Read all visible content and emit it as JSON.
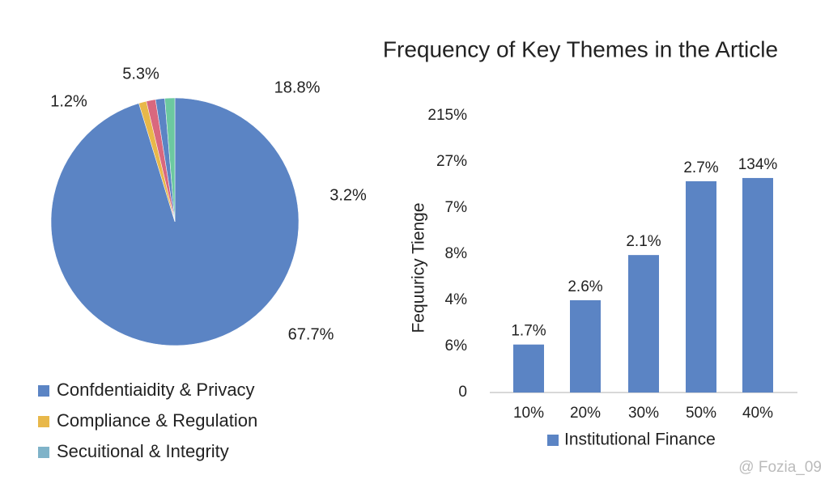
{
  "chart_data": [
    {
      "type": "pie",
      "values": [
        95.3,
        1,
        1.2,
        1.2,
        1.3
      ],
      "colors": [
        "#5b84c4",
        "#e8b84a",
        "#d9687e",
        "#5b84c4",
        "#6cc9a0"
      ],
      "annotations": [
        "5.3%",
        "1.2%",
        "18.8%",
        "3.2%",
        "67.7%"
      ],
      "legend": [
        {
          "name": "Confdentiaidity & Privacy",
          "color": "#5b84c4"
        },
        {
          "name": "Compliance & Regulation",
          "color": "#e8b84a"
        },
        {
          "name": "Secuitional & Integrity",
          "color": "#7fb3c9"
        }
      ]
    },
    {
      "type": "bar",
      "title": "Frequency of Key Themes in the Article",
      "y_label": "Fequuricy Tienge",
      "categories": [
        "10%",
        "20%",
        "30%",
        "50%",
        "40%"
      ],
      "series": [
        {
          "name": "Institutional Finance",
          "color": "#5b84c4",
          "values": [
            1.04,
            2.0,
            2.98,
            4.58,
            4.65
          ]
        }
      ],
      "annotations": [
        "1.7%",
        "2.6%",
        "2.1%",
        "2.7%",
        "134%"
      ],
      "ylim": [
        0,
        6
      ],
      "yticks": [
        0,
        {
          "value": 1,
          "label": "6%"
        },
        {
          "value": 2,
          "label": "4%"
        },
        {
          "value": 3,
          "label": "8%"
        },
        {
          "value": 4,
          "label": "7%"
        },
        {
          "value": 5,
          "label": "27%"
        },
        {
          "value": 6,
          "label": "215%"
        }
      ]
    }
  ],
  "watermark": "@ Fozia_09"
}
